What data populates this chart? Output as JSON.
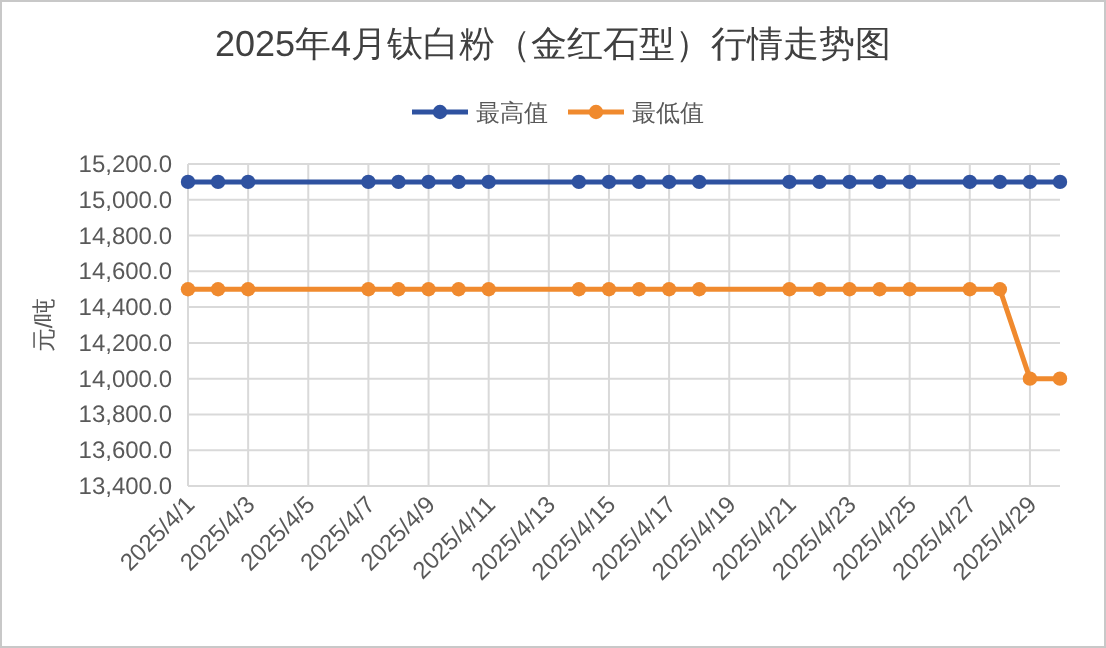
{
  "chart_data": {
    "type": "line",
    "title": "2025年4月钛白粉（金红石型）行情走势图",
    "ylabel": "元/吨",
    "x": [
      "2025-04-01",
      "2025-04-02",
      "2025-04-03",
      "2025-04-07",
      "2025-04-08",
      "2025-04-09",
      "2025-04-10",
      "2025-04-11",
      "2025-04-14",
      "2025-04-15",
      "2025-04-16",
      "2025-04-17",
      "2025-04-18",
      "2025-04-21",
      "2025-04-22",
      "2025-04-23",
      "2025-04-24",
      "2025-04-25",
      "2025-04-27",
      "2025-04-28",
      "2025-04-29",
      "2025-04-30"
    ],
    "series": [
      {
        "name": "最高值",
        "color": "#2f52a0",
        "values": [
          15100,
          15100,
          15100,
          15100,
          15100,
          15100,
          15100,
          15100,
          15100,
          15100,
          15100,
          15100,
          15100,
          15100,
          15100,
          15100,
          15100,
          15100,
          15100,
          15100,
          15100,
          15100
        ]
      },
      {
        "name": "最低值",
        "color": "#f08a2e",
        "values": [
          14500,
          14500,
          14500,
          14500,
          14500,
          14500,
          14500,
          14500,
          14500,
          14500,
          14500,
          14500,
          14500,
          14500,
          14500,
          14500,
          14500,
          14500,
          14500,
          14500,
          14000,
          14000
        ]
      }
    ],
    "xlim": [
      "2025-04-01",
      "2025-04-30"
    ],
    "xticks": [
      {
        "value": "2025-04-01",
        "label": "2025/4/1"
      },
      {
        "value": "2025-04-03",
        "label": "2025/4/3"
      },
      {
        "value": "2025-04-05",
        "label": "2025/4/5"
      },
      {
        "value": "2025-04-07",
        "label": "2025/4/7"
      },
      {
        "value": "2025-04-09",
        "label": "2025/4/9"
      },
      {
        "value": "2025-04-11",
        "label": "2025/4/11"
      },
      {
        "value": "2025-04-13",
        "label": "2025/4/13"
      },
      {
        "value": "2025-04-15",
        "label": "2025/4/15"
      },
      {
        "value": "2025-04-17",
        "label": "2025/4/17"
      },
      {
        "value": "2025-04-19",
        "label": "2025/4/19"
      },
      {
        "value": "2025-04-21",
        "label": "2025/4/21"
      },
      {
        "value": "2025-04-23",
        "label": "2025/4/23"
      },
      {
        "value": "2025-04-25",
        "label": "2025/4/25"
      },
      {
        "value": "2025-04-27",
        "label": "2025/4/27"
      },
      {
        "value": "2025-04-29",
        "label": "2025/4/29"
      }
    ],
    "ylim": [
      13400,
      15200
    ],
    "yticks": [
      {
        "value": 13400,
        "label": "13,400.0"
      },
      {
        "value": 13600,
        "label": "13,600.0"
      },
      {
        "value": 13800,
        "label": "13,800.0"
      },
      {
        "value": 14000,
        "label": "14,000.0"
      },
      {
        "value": 14200,
        "label": "14,200.0"
      },
      {
        "value": 14400,
        "label": "14,400.0"
      },
      {
        "value": 14600,
        "label": "14,600.0"
      },
      {
        "value": 14800,
        "label": "14,800.0"
      },
      {
        "value": 15000,
        "label": "15,000.0"
      },
      {
        "value": 15200,
        "label": "15,200.0"
      }
    ],
    "grid": true,
    "legend": "top",
    "marker": "circle",
    "line_style": "solid"
  }
}
